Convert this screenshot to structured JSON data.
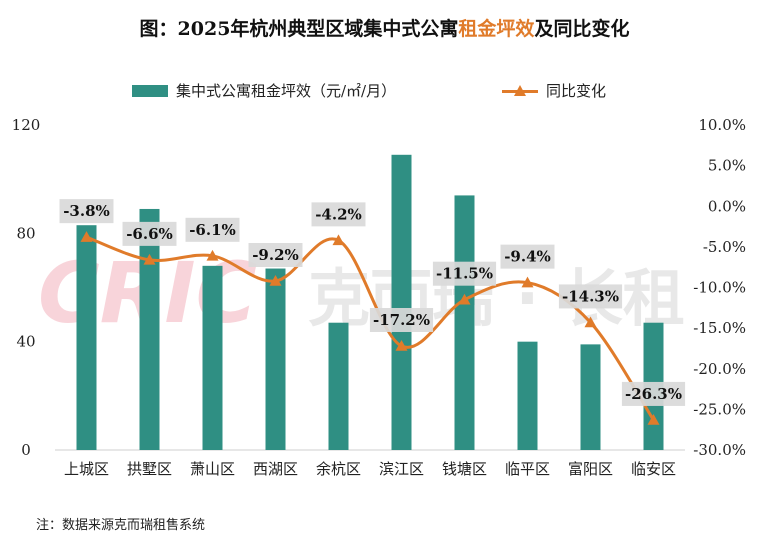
{
  "title": {
    "prefix": "图：2025年杭州典型区域集中式公寓",
    "highlight": "租金坪效",
    "suffix": "及同比变化"
  },
  "legend": {
    "bar_label": "集中式公寓租金坪效（元/㎡/月）",
    "line_label": "同比变化"
  },
  "note": "注：数据来源克而瑞租售系统",
  "watermark": {
    "logo": "CRIC",
    "text": "克而瑞 · 长租"
  },
  "colors": {
    "bar": "#2f8f83",
    "line": "#e07b2a",
    "label_bg": "#d9d9d9"
  },
  "chart_data": {
    "type": "bar+line",
    "categories": [
      "上城区",
      "拱墅区",
      "萧山区",
      "西湖区",
      "余杭区",
      "滨江区",
      "钱塘区",
      "临平区",
      "富阳区",
      "临安区"
    ],
    "series": [
      {
        "name": "集中式公寓租金坪效（元/㎡/月）",
        "type": "bar",
        "axis": "left",
        "values": [
          83,
          89,
          68,
          67,
          47,
          109,
          94,
          40,
          39,
          47
        ]
      },
      {
        "name": "同比变化",
        "type": "line",
        "axis": "right",
        "values": [
          -3.8,
          -6.6,
          -6.1,
          -9.2,
          -4.2,
          -17.2,
          -11.5,
          -9.4,
          -14.3,
          -26.3
        ],
        "labels": [
          "-3.8%",
          "-6.6%",
          "-6.1%",
          "-9.2%",
          "-4.2%",
          "-17.2%",
          "-11.5%",
          "-9.4%",
          "-14.3%",
          "-26.3%"
        ]
      }
    ],
    "y_left": {
      "min": 0,
      "max": 120,
      "ticks": [
        "0",
        "40",
        "80",
        "120"
      ],
      "tick_values": [
        0,
        40,
        80,
        120
      ]
    },
    "y_right": {
      "min": -30,
      "max": 10,
      "ticks": [
        "10.0%",
        "5.0%",
        "0.0%",
        "-5.0%",
        "-10.0%",
        "-15.0%",
        "-20.0%",
        "-25.0%",
        "-30.0%"
      ],
      "tick_values": [
        10,
        5,
        0,
        -5,
        -10,
        -15,
        -20,
        -25,
        -30
      ]
    },
    "legend_position": "top-center",
    "grid": false
  }
}
